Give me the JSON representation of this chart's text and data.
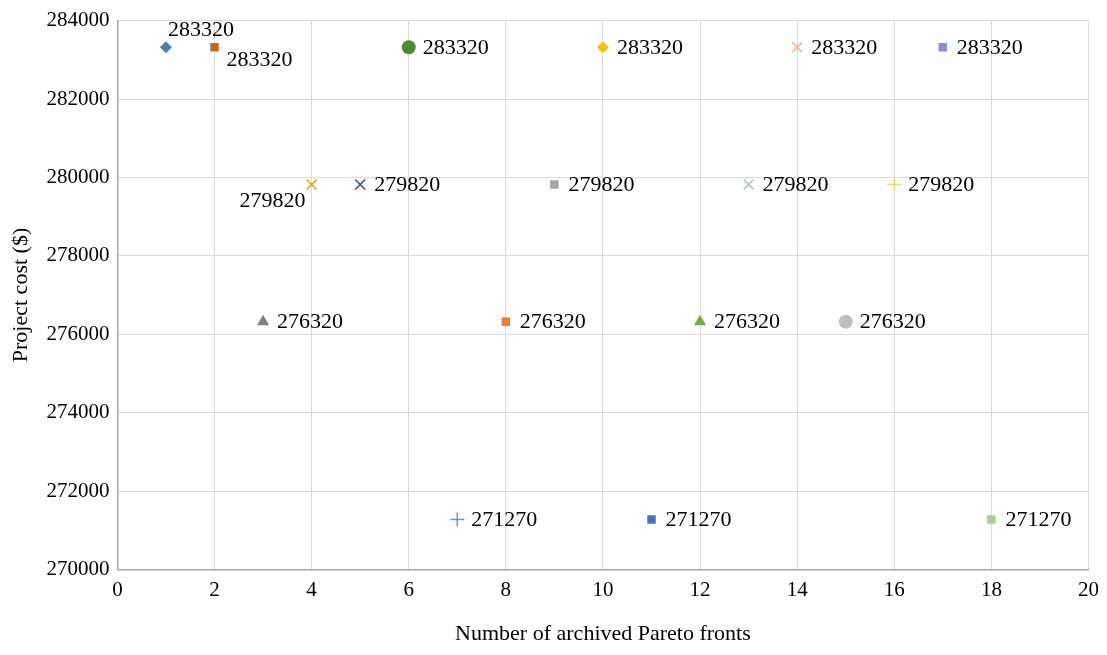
{
  "chart_data": {
    "type": "scatter",
    "xlabel": "Number of archived Pareto fronts",
    "ylabel": "Project cost ($)",
    "xlim": [
      0,
      20
    ],
    "xticks": [
      0,
      2,
      4,
      6,
      8,
      10,
      12,
      14,
      16,
      18,
      20
    ],
    "ylim": [
      270000,
      284000
    ],
    "yticks": [
      270000,
      272000,
      274000,
      276000,
      278000,
      280000,
      282000,
      284000
    ],
    "grid": true,
    "legend": false,
    "data_labels": true,
    "series": [
      {
        "x": [
          1
        ],
        "values": [
          283320
        ],
        "color": "#4a7ebb",
        "marker": "diamond"
      },
      {
        "x": [
          2
        ],
        "values": [
          283320
        ],
        "color": "#c0692a",
        "marker": "square"
      },
      {
        "x": [
          3
        ],
        "values": [
          276320
        ],
        "color": "#7f7f7f",
        "marker": "triangle"
      },
      {
        "x": [
          4
        ],
        "values": [
          279820
        ],
        "color": "#e6a000",
        "marker": "cross"
      },
      {
        "x": [
          5
        ],
        "values": [
          279820
        ],
        "color": "#2f4b9f",
        "marker": "cross"
      },
      {
        "x": [
          6
        ],
        "values": [
          283320
        ],
        "color": "#4e8a2e",
        "marker": "circle"
      },
      {
        "x": [
          7
        ],
        "values": [
          271270
        ],
        "color": "#5b9bd5",
        "marker": "plus"
      },
      {
        "x": [
          8
        ],
        "values": [
          276320
        ],
        "color": "#ed7d31",
        "marker": "square"
      },
      {
        "x": [
          9
        ],
        "values": [
          279820
        ],
        "color": "#a5a5a5",
        "marker": "square"
      },
      {
        "x": [
          10
        ],
        "values": [
          283320
        ],
        "color": "#ffc000",
        "marker": "diamond"
      },
      {
        "x": [
          11
        ],
        "values": [
          271270
        ],
        "color": "#4472c4",
        "marker": "square"
      },
      {
        "x": [
          12
        ],
        "values": [
          276320
        ],
        "color": "#70ad47",
        "marker": "triangle"
      },
      {
        "x": [
          13
        ],
        "values": [
          279820
        ],
        "color": "#9dc3e6",
        "marker": "cross"
      },
      {
        "x": [
          14
        ],
        "values": [
          283320
        ],
        "color": "#f4b183",
        "marker": "cross"
      },
      {
        "x": [
          15
        ],
        "values": [
          276320
        ],
        "color": "#bfbfbf",
        "marker": "circle"
      },
      {
        "x": [
          16
        ],
        "values": [
          279820
        ],
        "color": "#ffd966",
        "marker": "plus"
      },
      {
        "x": [
          17
        ],
        "values": [
          283320
        ],
        "color": "#7b96d6",
        "marker": "square"
      },
      {
        "x": [
          18
        ],
        "values": [
          271270
        ],
        "color": "#a9d18e",
        "marker": "square"
      }
    ]
  }
}
